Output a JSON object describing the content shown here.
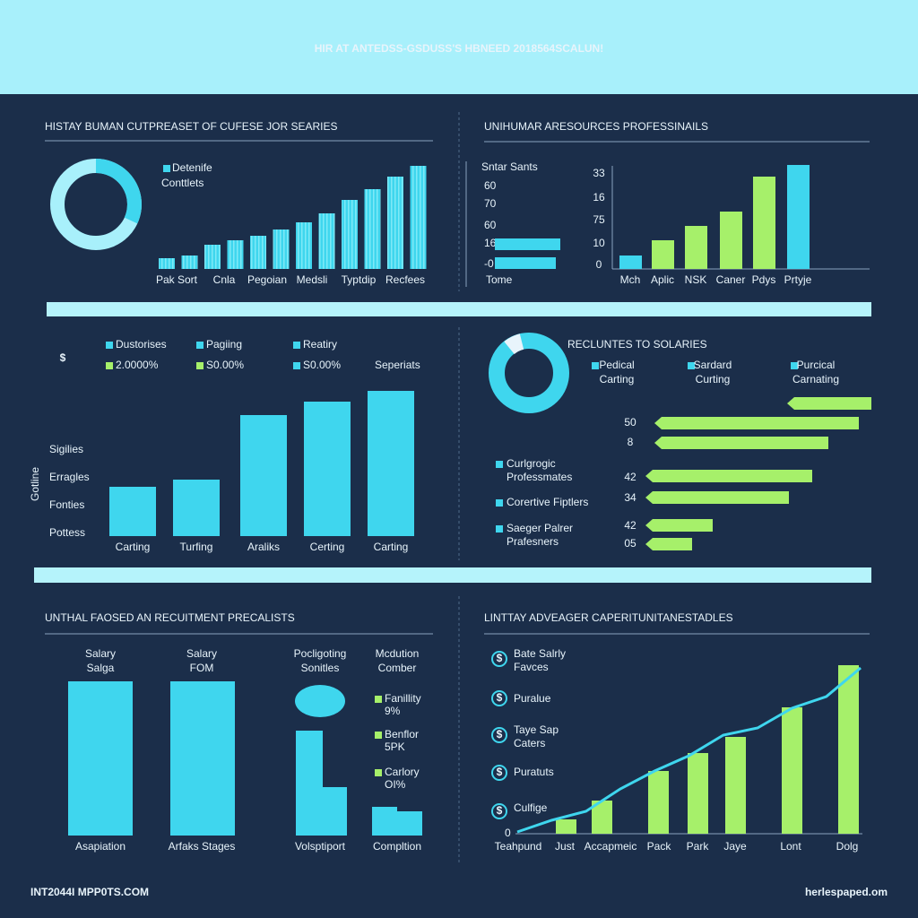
{
  "header": {
    "title": "HIR AT ANTEDSS-GSDUSS'S HBNEED 2018564SCALUN!"
  },
  "panels": [
    {
      "title": "HISTAY BUMAN CUTPREASET OF CUFESE JOR SEARIES",
      "legend": [
        "Detenife",
        "Conttlets"
      ],
      "bars": [
        12,
        15,
        27,
        32,
        37,
        44,
        52,
        62,
        77,
        89,
        103,
        115
      ],
      "labels": [
        "Pak Sort",
        "Cnla",
        "Pegoian",
        "Medsli",
        "Typtdip",
        "Recfees"
      ]
    },
    {
      "title": "UNIHUMAR ARESOURCES PROFESSINAILS",
      "mini": {
        "title": "Sntar Sants",
        "ticks": [
          "60",
          "70",
          "60",
          "16",
          "-0"
        ],
        "bars": [
          73,
          68
        ],
        "label": "Tome"
      },
      "axis": [
        "33",
        "16",
        "75",
        "10",
        "0"
      ],
      "bars": [
        15,
        32,
        48,
        64,
        103,
        116
      ],
      "colors": [
        "#3fd6ee",
        "#a6f06a",
        "#a6f06a",
        "#a6f06a",
        "#a6f06a",
        "#3fd6ee"
      ],
      "labels": [
        "Mch",
        "Aplic",
        "NSK",
        "Caner",
        "Pdys",
        "Prtyje"
      ]
    },
    {
      "icon": "$",
      "legend": [
        {
          "label": "Dustorises",
          "color": "#3fd6ee"
        },
        {
          "label": "Pagiing",
          "color": "#3fd6ee"
        },
        {
          "label": "Reatiry",
          "color": "#3fd6ee"
        },
        {
          "label": "2.0000%",
          "color": "#a6f06a"
        },
        {
          "label": "S0.00%",
          "color": "#a6f06a"
        },
        {
          "label": "S0.00%",
          "color": "#3fd6ee"
        }
      ],
      "note": "Seperiats",
      "axis_title": "Gotline",
      "axis": [
        "Sigilies",
        "Erragles",
        "Fonties",
        "Pottess"
      ],
      "bars": [
        55,
        63,
        135,
        150,
        162
      ],
      "labels": [
        "Carting",
        "Turfing",
        "Araliks",
        "Certing",
        "Carting"
      ]
    },
    {
      "title": "RECLUNTES TO SOLARIES",
      "legend": [
        [
          "Pedical",
          "Carting"
        ],
        [
          "Sardard",
          "Curting"
        ],
        [
          "Purcical",
          "Carnating"
        ]
      ],
      "bars": [
        94,
        228,
        194,
        186,
        160,
        75,
        52
      ],
      "values": [
        "50",
        "8",
        "42",
        "34",
        "42",
        "05"
      ],
      "groups": [
        [
          "Curlgrogic",
          "Professmates"
        ],
        [
          "Corertive Fiptlers"
        ],
        [
          "Saeger Palrer",
          "Prafesners"
        ]
      ]
    },
    {
      "title": "UNTHAL FAOSED AN RECUITMENT PRECALISTS",
      "headers": [
        [
          "Salary",
          "Salga"
        ],
        [
          "Salary",
          "FOM"
        ],
        [
          "Pocligoting",
          "Sonitles"
        ],
        [
          "Mcdution",
          "Comber"
        ]
      ],
      "bars": [
        172,
        172,
        117,
        54,
        32,
        27
      ],
      "legend": [
        [
          "Fanillity",
          "9%"
        ],
        [
          "Benflor",
          "5PK"
        ],
        [
          "Carlory",
          "OI%"
        ]
      ],
      "labels": [
        "Asapiation",
        "Arfaks Stages",
        "Volsptiport",
        "Compltion"
      ]
    },
    {
      "title": "LINTTAY ADVEAGER CAPERITUNITANESTADLES",
      "icon": "$",
      "legend": [
        [
          "Bate Salrly",
          "Favces"
        ],
        [
          "Puralue"
        ],
        [
          "Taye Sap",
          "Caters"
        ],
        [
          "Puratuts"
        ],
        [
          "Culfige"
        ]
      ],
      "zero": "0",
      "bars": [
        16,
        37,
        70,
        90,
        108,
        141,
        188
      ],
      "line": [
        2,
        15,
        25,
        50,
        70,
        87,
        110,
        118,
        140,
        153,
        185
      ],
      "labels": [
        "Teahpund",
        "Just",
        "Accapmeic",
        "Pack",
        "Park",
        "Jaye",
        "Lont",
        "Dolg"
      ]
    }
  ],
  "footer": {
    "left": "INT2044I MPP0TS.COM",
    "right": "herlespaped.om"
  }
}
